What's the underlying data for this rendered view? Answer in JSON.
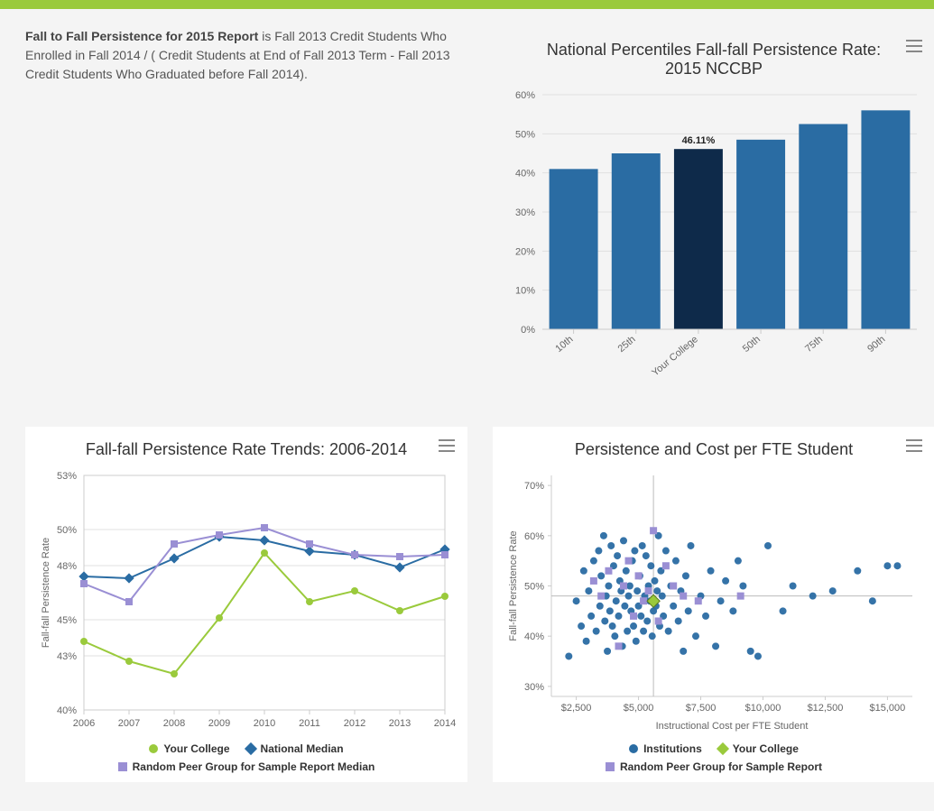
{
  "description": {
    "bold": "Fall to Fall Persistence for 2015 Report",
    "rest": " is Fall 2013 Credit Students Who Enrolled in Fall 2014 / ( Credit Students at End of Fall 2013 Term - Fall 2013 Credit Students Who Graduated before Fall 2014)."
  },
  "colors": {
    "accent_green": "#9aca3c",
    "bar_default": "#2a6ca3",
    "bar_highlight": "#0e2a4a",
    "line_your": "#9aca3c",
    "line_national": "#2a6ca3",
    "line_peer": "#9a8fd4",
    "scatter_inst": "#2a6ca3",
    "scatter_your": "#9aca3c",
    "scatter_peer": "#9a8fd4",
    "grid": "#e6e6e6",
    "text": "#666666"
  },
  "bar_chart": {
    "title": "National Percentiles Fall-fall Persistence Rate: 2015 NCCBP",
    "type": "bar",
    "categories": [
      "10th",
      "25th",
      "Your College",
      "50th",
      "75th",
      "90th"
    ],
    "values": [
      41,
      45,
      46.11,
      48.5,
      52.5,
      56
    ],
    "highlight_index": 2,
    "highlight_label": "46.11%",
    "ylim": [
      0,
      60
    ],
    "ytick_step": 10,
    "ytick_format": "percent",
    "bar_width_ratio": 0.78
  },
  "line_chart": {
    "title": "Fall-fall Persistence Rate Trends: 2006-2014",
    "type": "line",
    "ylabel": "Fall-fall Persistence Rate",
    "years": [
      2006,
      2007,
      2008,
      2009,
      2010,
      2011,
      2012,
      2013,
      2014
    ],
    "ylim": [
      40,
      53
    ],
    "yticks": [
      40,
      43,
      45,
      48,
      50,
      53
    ],
    "series": [
      {
        "name": "Your College",
        "color_key": "line_your",
        "marker": "circle",
        "values": [
          43.8,
          42.7,
          42.0,
          45.1,
          48.7,
          46.0,
          46.6,
          45.5,
          46.3
        ]
      },
      {
        "name": "National Median",
        "color_key": "line_national",
        "marker": "diamond",
        "values": [
          47.4,
          47.3,
          48.4,
          49.6,
          49.4,
          48.8,
          48.6,
          47.9,
          48.9
        ]
      },
      {
        "name": "Random Peer Group for Sample Report Median",
        "color_key": "line_peer",
        "marker": "square",
        "values": [
          47.0,
          46.0,
          49.2,
          49.7,
          50.1,
          49.2,
          48.6,
          48.5,
          48.6
        ]
      }
    ]
  },
  "scatter_chart": {
    "title": "Persistence and Cost per FTE Student",
    "type": "scatter",
    "xlabel": "Instructional Cost per FTE Student",
    "ylabel": "Fall-fall Persistence Rate",
    "xlim": [
      1500,
      16000
    ],
    "xticks": [
      2500,
      5000,
      7500,
      10000,
      12500,
      15000
    ],
    "ylim": [
      28,
      72
    ],
    "yticks": [
      30,
      40,
      50,
      60,
      70
    ],
    "crosshair": {
      "x": 5600,
      "y": 48
    },
    "your_college": {
      "x": 5600,
      "y": 47
    },
    "peer_points": [
      [
        3200,
        51
      ],
      [
        3500,
        48
      ],
      [
        3800,
        53
      ],
      [
        4200,
        38
      ],
      [
        4400,
        50
      ],
      [
        4600,
        55
      ],
      [
        4800,
        44
      ],
      [
        5000,
        52
      ],
      [
        5200,
        47
      ],
      [
        5400,
        49
      ],
      [
        5600,
        61
      ],
      [
        5800,
        43
      ],
      [
        6100,
        54
      ],
      [
        6400,
        50
      ],
      [
        6800,
        48
      ],
      [
        7400,
        47
      ],
      [
        9100,
        48
      ]
    ],
    "inst_points": [
      [
        2200,
        36
      ],
      [
        2500,
        47
      ],
      [
        2700,
        42
      ],
      [
        2800,
        53
      ],
      [
        2900,
        39
      ],
      [
        3000,
        49
      ],
      [
        3100,
        44
      ],
      [
        3200,
        55
      ],
      [
        3300,
        41
      ],
      [
        3400,
        57
      ],
      [
        3450,
        46
      ],
      [
        3500,
        52
      ],
      [
        3600,
        60
      ],
      [
        3650,
        43
      ],
      [
        3700,
        48
      ],
      [
        3750,
        37
      ],
      [
        3800,
        50
      ],
      [
        3850,
        45
      ],
      [
        3900,
        58
      ],
      [
        3950,
        42
      ],
      [
        4000,
        54
      ],
      [
        4050,
        40
      ],
      [
        4100,
        47
      ],
      [
        4150,
        56
      ],
      [
        4200,
        44
      ],
      [
        4250,
        51
      ],
      [
        4300,
        49
      ],
      [
        4350,
        38
      ],
      [
        4400,
        59
      ],
      [
        4450,
        46
      ],
      [
        4500,
        53
      ],
      [
        4550,
        41
      ],
      [
        4600,
        48
      ],
      [
        4650,
        50
      ],
      [
        4700,
        45
      ],
      [
        4750,
        55
      ],
      [
        4800,
        42
      ],
      [
        4850,
        57
      ],
      [
        4900,
        39
      ],
      [
        4950,
        49
      ],
      [
        5000,
        46
      ],
      [
        5050,
        52
      ],
      [
        5100,
        44
      ],
      [
        5150,
        58
      ],
      [
        5200,
        41
      ],
      [
        5250,
        48
      ],
      [
        5300,
        56
      ],
      [
        5350,
        43
      ],
      [
        5400,
        50
      ],
      [
        5450,
        47
      ],
      [
        5500,
        54
      ],
      [
        5550,
        40
      ],
      [
        5600,
        45
      ],
      [
        5650,
        51
      ],
      [
        5700,
        46
      ],
      [
        5750,
        49
      ],
      [
        5800,
        60
      ],
      [
        5850,
        42
      ],
      [
        5900,
        53
      ],
      [
        5950,
        48
      ],
      [
        6000,
        44
      ],
      [
        6100,
        57
      ],
      [
        6200,
        41
      ],
      [
        6300,
        50
      ],
      [
        6400,
        46
      ],
      [
        6500,
        55
      ],
      [
        6600,
        43
      ],
      [
        6700,
        49
      ],
      [
        6800,
        37
      ],
      [
        6900,
        52
      ],
      [
        7000,
        45
      ],
      [
        7100,
        58
      ],
      [
        7300,
        40
      ],
      [
        7500,
        48
      ],
      [
        7700,
        44
      ],
      [
        7900,
        53
      ],
      [
        8100,
        38
      ],
      [
        8300,
        47
      ],
      [
        8500,
        51
      ],
      [
        8800,
        45
      ],
      [
        9000,
        55
      ],
      [
        9200,
        50
      ],
      [
        9500,
        37
      ],
      [
        9800,
        36
      ],
      [
        10200,
        58
      ],
      [
        10800,
        45
      ],
      [
        11200,
        50
      ],
      [
        12000,
        48
      ],
      [
        12800,
        49
      ],
      [
        13800,
        53
      ],
      [
        14400,
        47
      ],
      [
        15000,
        54
      ],
      [
        15400,
        54
      ]
    ],
    "legend": [
      {
        "name": "Institutions",
        "color_key": "scatter_inst",
        "shape": "circle"
      },
      {
        "name": "Your College",
        "color_key": "scatter_your",
        "shape": "diamond"
      },
      {
        "name": "Random Peer Group for Sample Report",
        "color_key": "scatter_peer",
        "shape": "square"
      }
    ]
  }
}
